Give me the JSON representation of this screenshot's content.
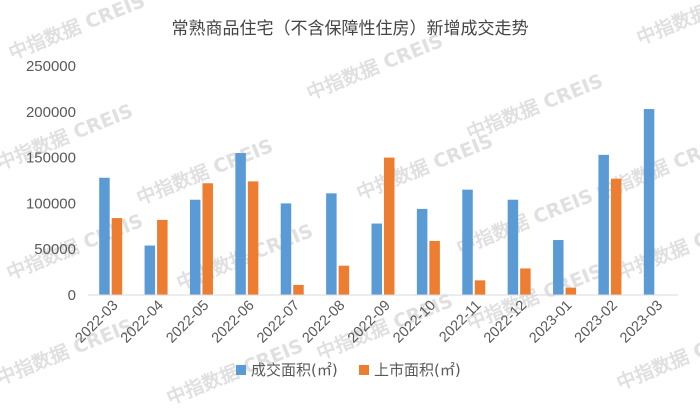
{
  "watermark": "中指数据 CREIS",
  "chart_data": {
    "type": "bar",
    "title": "常熟商品住宅（不含保障性住房）新增成交走势",
    "categories": [
      "2022-03",
      "2022-04",
      "2022-05",
      "2022-06",
      "2022-07",
      "2022-08",
      "2022-09",
      "2022-10",
      "2022-11",
      "2022-12",
      "2023-01",
      "2023-02",
      "2023-03"
    ],
    "series": [
      {
        "name": "成交面积(㎡)",
        "color": "#5b9bd5",
        "values": [
          128000,
          54000,
          104000,
          155000,
          100000,
          111000,
          78000,
          94000,
          115000,
          104000,
          60000,
          153000,
          203000
        ]
      },
      {
        "name": "上市面积(㎡)",
        "color": "#ed7d31",
        "values": [
          84000,
          82000,
          122000,
          124000,
          11000,
          32000,
          150000,
          59000,
          16000,
          29000,
          8000,
          127000,
          null
        ]
      }
    ],
    "ylim": [
      0,
      250000
    ],
    "yticks": [
      0,
      50000,
      100000,
      150000,
      200000,
      250000
    ],
    "grid": false,
    "legend": "bottom",
    "xlabel": "",
    "ylabel": ""
  }
}
